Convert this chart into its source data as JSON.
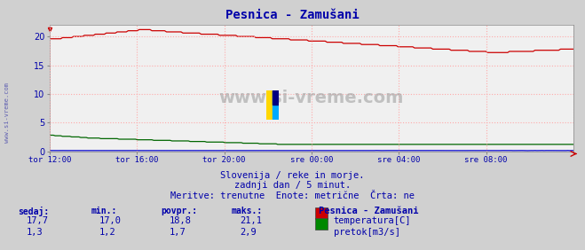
{
  "title": "Pesnica - Zamušani",
  "bg_color": "#d0d0d0",
  "plot_bg_color": "#f0f0f0",
  "grid_color": "#ffaaaa",
  "title_color": "#0000aa",
  "axis_label_color": "#0000aa",
  "text_color": "#0000aa",
  "watermark": "www.si-vreme.com",
  "subtitle1": "Slovenija / reke in morje.",
  "subtitle2": "zadnji dan / 5 minut.",
  "subtitle3": "Meritve: trenutne  Enote: metrične  Črta: ne",
  "xlabel_ticks": [
    "tor 12:00",
    "tor 16:00",
    "tor 20:00",
    "sre 00:00",
    "sre 04:00",
    "sre 08:00"
  ],
  "ylim": [
    0,
    22
  ],
  "yticks": [
    0,
    5,
    10,
    15,
    20
  ],
  "temp_color": "#cc0000",
  "flow_color": "#006600",
  "height_color": "#0000cc",
  "legend_title": "Pesnica - Zamušani",
  "legend_items": [
    "temperatura[C]",
    "pretok[m3/s]"
  ],
  "legend_colors": [
    "#cc0000",
    "#008800"
  ],
  "stat_headers": [
    "sedaj:",
    "min.:",
    "povpr.:",
    "maks.:"
  ],
  "stat_temp": [
    "17,7",
    "17,0",
    "18,8",
    "21,1"
  ],
  "stat_flow": [
    "1,3",
    "1,2",
    "1,7",
    "2,9"
  ]
}
